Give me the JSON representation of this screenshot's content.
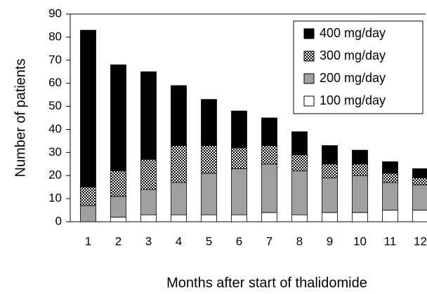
{
  "chart_data": {
    "type": "stacked-bar",
    "x_label": "Months after start of thalidomide",
    "y_label": "Number of patients",
    "categories": [
      "1",
      "2",
      "3",
      "4",
      "5",
      "6",
      "7",
      "8",
      "9",
      "10",
      "11",
      "12"
    ],
    "series": [
      {
        "name": "100 mg/day",
        "color": "#ffffff",
        "values": [
          0,
          2,
          3,
          3,
          3,
          3,
          4,
          3,
          4,
          4,
          5,
          5
        ]
      },
      {
        "name": "200 mg/day",
        "color": "#a0a0a0",
        "values": [
          7,
          9,
          11,
          14,
          18,
          20,
          21,
          19,
          15,
          16,
          12,
          11
        ]
      },
      {
        "name": "300 mg/day",
        "color": "#000000",
        "hatch": "dots",
        "values": [
          8,
          11,
          13,
          16,
          12,
          9,
          8,
          7,
          6,
          5,
          4,
          3
        ]
      },
      {
        "name": "400 mg/day",
        "color": "#000000",
        "values": [
          68,
          46,
          38,
          26,
          20,
          16,
          12,
          10,
          8,
          6,
          5,
          4
        ]
      }
    ],
    "ylim": [
      0,
      90
    ],
    "yticks": [
      0,
      10,
      20,
      30,
      40,
      50,
      60,
      70,
      80,
      90
    ],
    "legend": "upper right"
  }
}
